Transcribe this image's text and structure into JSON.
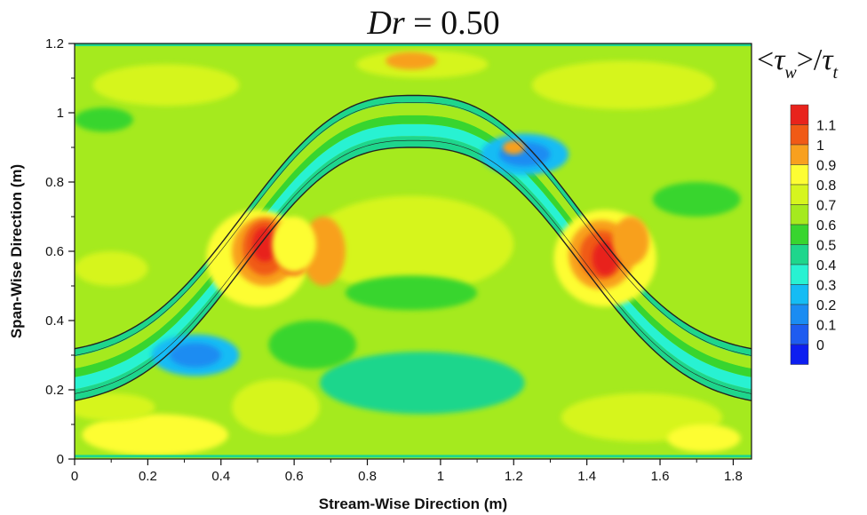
{
  "chart_data": {
    "type": "heatmap",
    "title": "Dr = 0.50",
    "title_parts": {
      "var": "Dr",
      "rest": " = 0.50"
    },
    "xlabel": "Stream-Wise Direction (m)",
    "ylabel": "Span-Wise Direction (m)",
    "xlim": [
      0,
      1.85
    ],
    "ylim": [
      0,
      1.2
    ],
    "x_ticks": [
      0,
      0.2,
      0.4,
      0.6,
      0.8,
      1,
      1.2,
      1.4,
      1.6,
      1.8
    ],
    "x_tick_labels": [
      "0",
      "0.2",
      "0.4",
      "0.6",
      "0.8",
      "1",
      "1.2",
      "1.4",
      "1.6",
      "1.8"
    ],
    "y_ticks": [
      0,
      0.2,
      0.4,
      0.6,
      0.8,
      1,
      1.2
    ],
    "y_tick_labels": [
      "0",
      "0.2",
      "0.4",
      "0.6",
      "0.8",
      "1",
      "1.2"
    ],
    "colorbar": {
      "title_parts": [
        "<",
        "τ",
        "w",
        ">/",
        "τ",
        "t"
      ],
      "levels": [
        1.1,
        1,
        0.9,
        0.8,
        0.7,
        0.6,
        0.5,
        0.4,
        0.3,
        0.2,
        0.1,
        0
      ],
      "level_labels": [
        "1.1",
        "1",
        "0.9",
        "0.8",
        "0.7",
        "0.6",
        "0.5",
        "0.4",
        "0.3",
        "0.2",
        "0.1",
        "0"
      ],
      "colors": [
        "#e8231c",
        "#f05a16",
        "#f8a01e",
        "#fdfd33",
        "#d6f51e",
        "#a5ea1e",
        "#38d52f",
        "#1ed68c",
        "#28f2d2",
        "#14bcf4",
        "#1a8cf2",
        "#1e5cf0",
        "#0d1ef0"
      ]
    },
    "channel_walls": {
      "lower_wall_y": [
        0.15,
        0.9
      ],
      "upper_wall_y": [
        0.3,
        1.05
      ],
      "peak_x": 0.925
    },
    "background_level": 0.6,
    "peak_regions": [
      {
        "x": 0.52,
        "y": 0.61,
        "value": 1.1
      },
      {
        "x": 1.45,
        "y": 0.58,
        "value": 1.1
      }
    ],
    "low_regions": [
      {
        "x": 0.33,
        "y": 0.3,
        "value": 0.1
      },
      {
        "x": 1.23,
        "y": 0.88,
        "value": 0.1
      }
    ]
  }
}
